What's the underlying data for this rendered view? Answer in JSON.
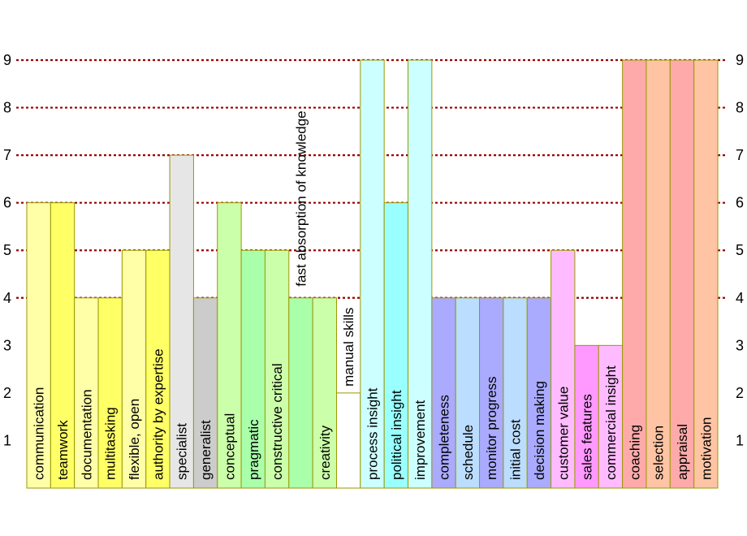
{
  "chart_data": {
    "type": "bar",
    "ylim": [
      0,
      9
    ],
    "yticks": [
      1,
      2,
      3,
      4,
      5,
      6,
      7,
      8,
      9
    ],
    "grid": true,
    "categories": [
      "communication",
      "teamwork",
      "documentation",
      "multitasking",
      "flexible, open",
      "authority by expertise",
      "specialist",
      "generalist",
      "conceptual",
      "pragmatic",
      "constructive critical",
      "fast absorption of knowledge",
      "creativity",
      "manual skills",
      "process insight",
      "political insight",
      "improvement",
      "completeness",
      "schedule",
      "monitor progress",
      "initial cost",
      "decision making",
      "customer value",
      "sales features",
      "commercial insight",
      "coaching",
      "selection",
      "appraisal",
      "motivation"
    ],
    "values": [
      6,
      6,
      4,
      4,
      5,
      5,
      7,
      4,
      6,
      5,
      5,
      4,
      4,
      2,
      9,
      6,
      9,
      4,
      4,
      4,
      4,
      4,
      5,
      3,
      3,
      9,
      9,
      9,
      9
    ],
    "colors": [
      "#ffffa8",
      "#ffff66",
      "#ffffa8",
      "#ffff66",
      "#ffffa8",
      "#ffff66",
      "#e6e6e6",
      "#cccccc",
      "#ccffaa",
      "#aaffaa",
      "#ccffaa",
      "#aaffaa",
      "#ccffaa",
      "#ffffff",
      "#ccffff",
      "#99ffff",
      "#ccffff",
      "#aaaaff",
      "#bbddff",
      "#aaaaff",
      "#bbddff",
      "#aaaaff",
      "#ffbbff",
      "#ff99ff",
      "#ffbbff",
      "#ffaaaa",
      "#ffc4a4",
      "#ffaaaa",
      "#ffc4a4"
    ],
    "border_color": "#999900",
    "grid_color": "#990000"
  }
}
